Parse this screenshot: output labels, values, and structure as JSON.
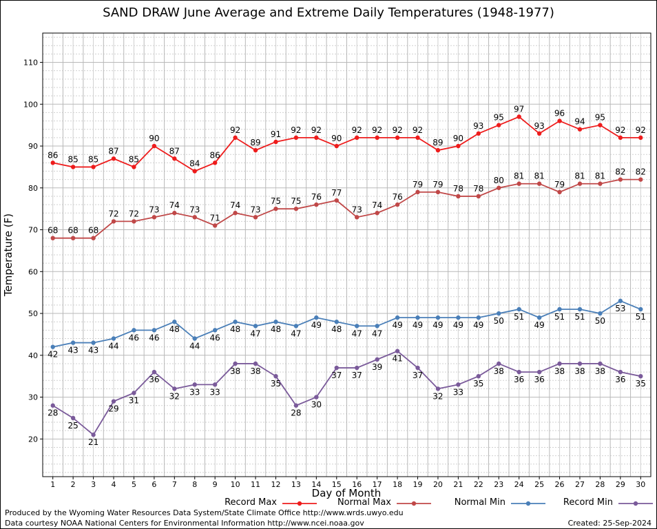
{
  "colors": {
    "record_max": "#ee1c1c",
    "normal_max": "#c04848",
    "normal_min": "#4a7fb8",
    "record_min": "#7a5a9a",
    "grid_major": "#b8b8b8",
    "grid_minor": "#d0d0d0"
  },
  "legend": [
    {
      "series": 0,
      "label": "Record Max"
    },
    {
      "series": 1,
      "label": "Normal Max"
    },
    {
      "series": 2,
      "label": "Normal Min"
    },
    {
      "series": 3,
      "label": "Record Min"
    }
  ],
  "credits": {
    "line1": "Produced by the Wyoming Water Resources Data System/State Climate Office http://www.wrds.uwyo.edu",
    "line2": "Data courtesy NOAA National Centers for Environmental Information http://www.ncei.noaa.gov",
    "created": "Created:  25-Sep-2024"
  },
  "chart_data": {
    "type": "line",
    "title": "SAND DRAW June Average and Extreme Daily Temperatures (1948-1977)",
    "xlabel": "Day of Month",
    "ylabel": "Temperature (F)",
    "x": [
      1,
      2,
      3,
      4,
      5,
      6,
      7,
      8,
      9,
      10,
      11,
      12,
      13,
      14,
      15,
      16,
      17,
      18,
      19,
      20,
      21,
      22,
      23,
      24,
      25,
      26,
      27,
      28,
      29,
      30
    ],
    "xlim": [
      0.5,
      30.5
    ],
    "ylim": [
      11,
      117
    ],
    "yticks": [
      20,
      30,
      40,
      50,
      60,
      70,
      80,
      90,
      100,
      110
    ],
    "grid": true,
    "legend_position": "bottom",
    "series": [
      {
        "name": "Record Max",
        "label_position": "above",
        "values": [
          86,
          85,
          85,
          87,
          85,
          90,
          87,
          84,
          86,
          92,
          89,
          91,
          92,
          92,
          90,
          92,
          92,
          92,
          92,
          89,
          90,
          93,
          95,
          97,
          93,
          96,
          94,
          95,
          92,
          92
        ]
      },
      {
        "name": "Normal Max",
        "label_position": "above",
        "values": [
          68,
          68,
          68,
          72,
          72,
          73,
          74,
          73,
          71,
          74,
          73,
          75,
          75,
          76,
          77,
          73,
          74,
          76,
          79,
          79,
          78,
          78,
          80,
          81,
          81,
          79,
          81,
          81,
          82,
          82
        ]
      },
      {
        "name": "Normal Min",
        "label_position": "below",
        "values": [
          42,
          43,
          43,
          44,
          46,
          46,
          48,
          44,
          46,
          48,
          47,
          48,
          47,
          49,
          48,
          47,
          47,
          49,
          49,
          49,
          49,
          49,
          50,
          51,
          49,
          51,
          51,
          50,
          53,
          51
        ]
      },
      {
        "name": "Record Min",
        "label_position": "below",
        "values": [
          28,
          25,
          21,
          29,
          31,
          36,
          32,
          33,
          33,
          38,
          38,
          35,
          28,
          30,
          37,
          37,
          39,
          41,
          37,
          32,
          33,
          35,
          38,
          36,
          36,
          38,
          38,
          38,
          36,
          35
        ]
      }
    ]
  }
}
